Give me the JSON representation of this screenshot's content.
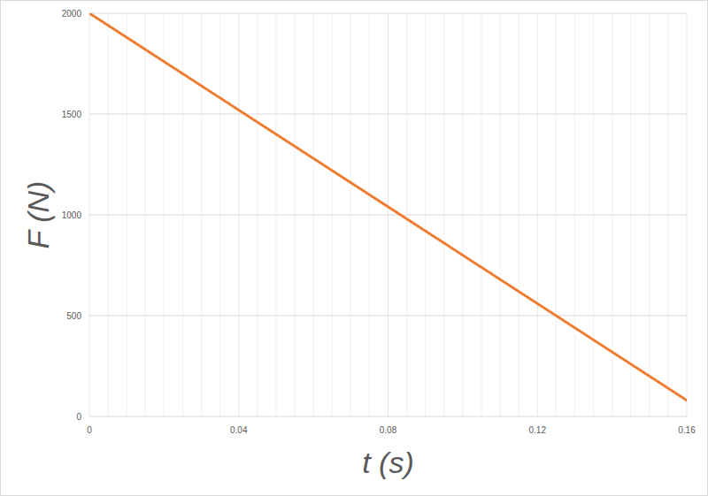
{
  "chart_data": {
    "type": "line",
    "x_label": "t (s)",
    "y_label": "F (N)",
    "x": [
      0,
      0.16
    ],
    "values": [
      2000,
      80
    ],
    "color": "#ed7d31",
    "xlim": [
      0,
      0.16
    ],
    "xticks": [
      0,
      0.04,
      0.08,
      0.12,
      0.16
    ],
    "ylim": [
      0,
      2000
    ],
    "yticks": [
      0,
      500,
      1000,
      1500,
      2000
    ],
    "grid": true
  }
}
